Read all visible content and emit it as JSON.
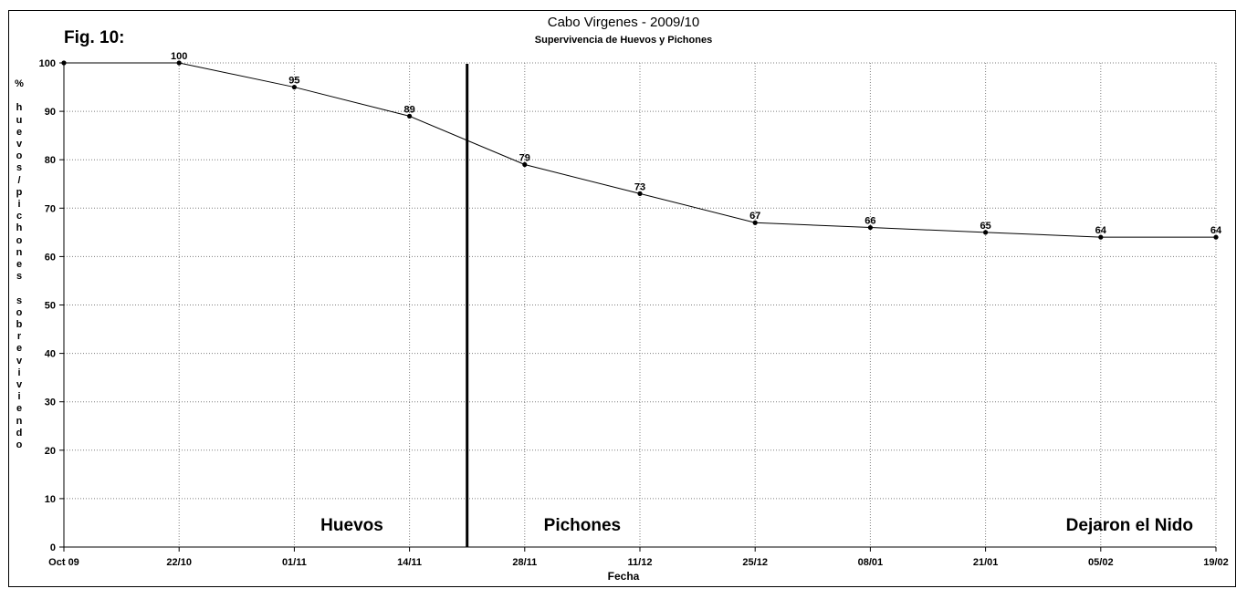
{
  "figure_label": "Fig. 10:",
  "chart_data": {
    "type": "line",
    "title": "Cabo Virgenes - 2009/10",
    "subtitle": "Supervivencia de Huevos y Pichones",
    "xlabel": "Fecha",
    "ylabel": "% huevos/pichones sobreviviendo",
    "ylim": [
      0,
      100
    ],
    "yticks": [
      0,
      10,
      20,
      30,
      40,
      50,
      60,
      70,
      80,
      90,
      100
    ],
    "x": [
      "Oct 09",
      "22/10",
      "01/11",
      "14/11",
      "28/11",
      "11/12",
      "25/12",
      "08/01",
      "21/01",
      "05/02",
      "19/02"
    ],
    "series": [
      {
        "values": [
          100,
          100,
          95,
          89,
          79,
          73,
          67,
          66,
          65,
          64,
          64
        ],
        "labels": [
          "",
          "100",
          "95",
          "89",
          "79",
          "73",
          "67",
          "66",
          "65",
          "64",
          "64"
        ]
      }
    ],
    "grid": true,
    "separator_after_category_index": 3.5,
    "annotations": [
      "Huevos",
      "Pichones",
      "Dejaron el Nido"
    ],
    "colors": {
      "line": "#000000",
      "grid": "#7f7f7f",
      "separator": "#000000"
    }
  }
}
